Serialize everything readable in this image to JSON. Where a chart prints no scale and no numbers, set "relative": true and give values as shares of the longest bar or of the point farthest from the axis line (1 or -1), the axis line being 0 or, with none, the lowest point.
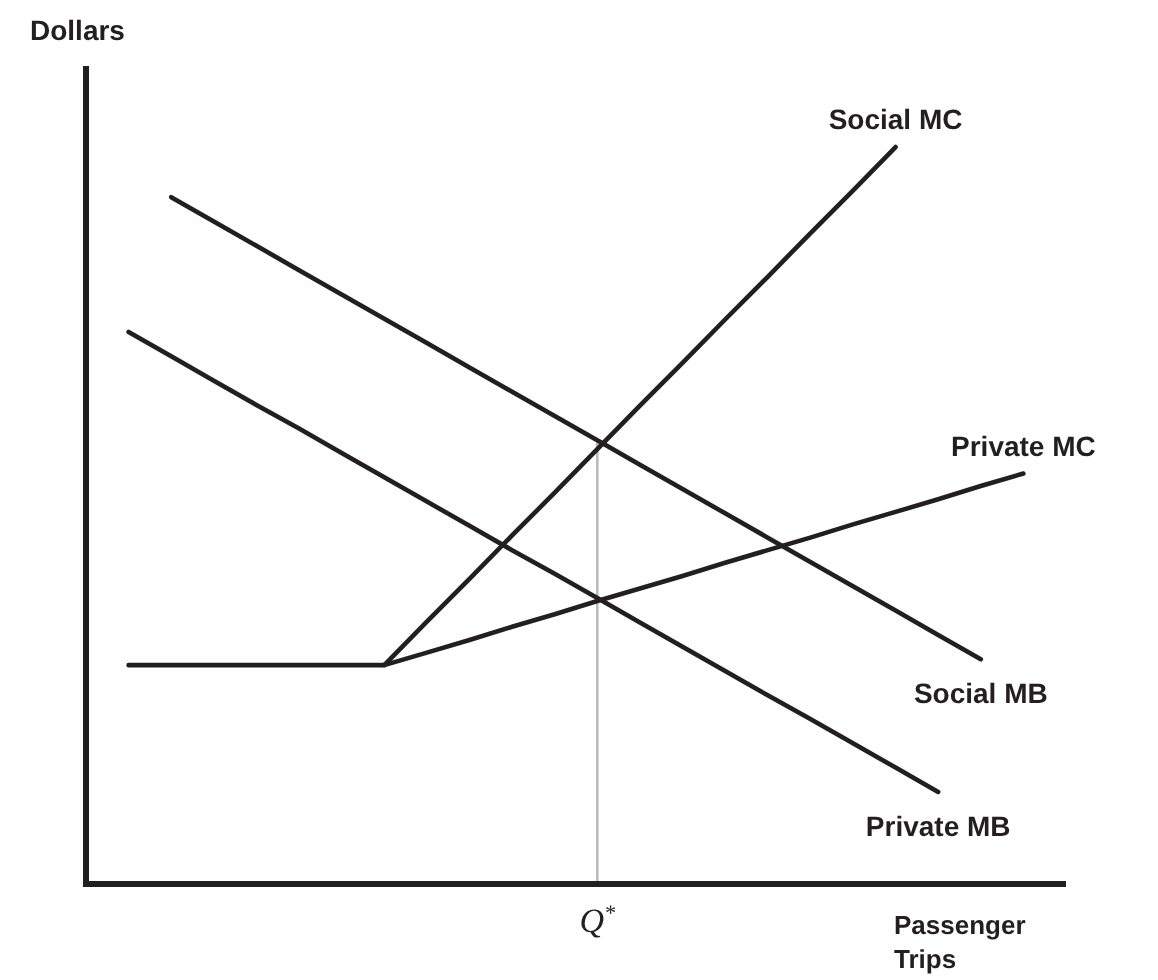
{
  "chart_data": {
    "type": "line",
    "relative": true,
    "xlabel": "Passenger Trips",
    "ylabel": "Dollars",
    "annotations": [
      "Q$^{*}$"
    ],
    "marker": "none",
    "line_style": "solid",
    "categories": [
      null,
      null,
      null,
      null,
      null,
      null,
      null,
      null,
      null,
      null,
      null,
      null,
      null,
      null,
      null,
      null,
      null,
      null,
      null,
      null,
      null,
      null,
      null,
      null
    ],
    "series": [
      {
        "name": "Social MC",
        "color": "#231f20",
        "values": [
          null,
          null,
          null,
          null,
          null,
          null,
          null,
          0.297,
          0.356,
          0.414,
          0.473,
          0.531,
          0.59,
          0.649,
          0.707,
          0.766,
          0.824,
          0.883,
          0.941,
          1,
          null,
          null,
          null,
          null
        ]
      },
      {
        "name": "Private MC",
        "color": "#231f20",
        "values": [
          null,
          0.297,
          0.297,
          0.297,
          0.297,
          0.297,
          0.297,
          0.297,
          0.314,
          0.331,
          0.349,
          0.366,
          0.384,
          0.401,
          0.418,
          0.436,
          0.453,
          0.47,
          0.488,
          0.505,
          0.522,
          0.54,
          0.557,
          null
        ]
      },
      {
        "name": "Social MB",
        "color": "#231f20",
        "values": [
          null,
          null,
          0.932,
          0.899,
          0.866,
          0.833,
          0.8,
          0.767,
          0.734,
          0.701,
          0.668,
          0.635,
          0.602,
          0.569,
          0.536,
          0.503,
          0.47,
          0.437,
          0.404,
          0.371,
          0.338,
          0.305,
          null,
          null
        ]
      },
      {
        "name": "Private MB",
        "color": "#231f20",
        "values": [
          null,
          0.749,
          0.716,
          0.683,
          0.65,
          0.618,
          0.585,
          0.552,
          0.519,
          0.486,
          0.453,
          0.421,
          0.388,
          0.355,
          0.322,
          0.289,
          0.256,
          0.224,
          0.191,
          0.158,
          0.125,
          null,
          null,
          null
        ]
      }
    ]
  }
}
